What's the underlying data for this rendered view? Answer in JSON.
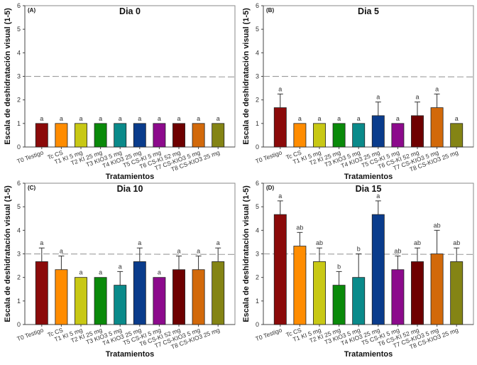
{
  "chart_data": [
    {
      "type": "bar",
      "panel": "(A)",
      "title": "Dia 0",
      "xlabel": "Tratamientos",
      "ylabel": "Escala de deshidratación visual (1-5)",
      "ylim": [
        0,
        6
      ],
      "yticks": [
        0,
        1,
        2,
        3,
        4,
        5,
        6
      ],
      "reference_line": 3,
      "categories": [
        "T0 Testigo",
        "Tc CS",
        "T1 KI 5 mg",
        "T2 KI 25 mg",
        "T3 KIO3 5 mg",
        "T4 KIO3 25 mg",
        "T5 CS-KI 5 mg",
        "T6 CS-KI 52 mg",
        "T7 CS-KIO3 5 mg",
        "T8 CS-KIO3 25 mg"
      ],
      "values": [
        1,
        1,
        1,
        1,
        1,
        1,
        1,
        1,
        1,
        1
      ],
      "errors": [
        0,
        0,
        0,
        0,
        0,
        0,
        0,
        0,
        0,
        0
      ],
      "significance": [
        "a",
        "a",
        "a",
        "a",
        "a",
        "a",
        "a",
        "a",
        "a",
        "a"
      ]
    },
    {
      "type": "bar",
      "panel": "(B)",
      "title": "Dia 5",
      "xlabel": "Tratamientos",
      "ylabel": "Escala de deshidratación visual (1-5)",
      "ylim": [
        0,
        6
      ],
      "yticks": [
        0,
        1,
        2,
        3,
        4,
        5,
        6
      ],
      "reference_line": 3,
      "categories": [
        "T0 Testigo",
        "Tc CS",
        "T1 KI 5 mg",
        "T2 KI 25 mg",
        "T3 KIO3 5 mg",
        "T4 KIO3 25 mg",
        "T5 CS-KI 5 mg",
        "T6 CS-KI 52 mg",
        "T7 CS-KIO3 5 mg",
        "T8 CS-KIO3 25 mg"
      ],
      "values": [
        1.67,
        1,
        1,
        1,
        1,
        1.33,
        1,
        1.33,
        1.67,
        1
      ],
      "errors": [
        0.58,
        0,
        0,
        0,
        0,
        0.58,
        0,
        0.58,
        0.58,
        0
      ],
      "significance": [
        "a",
        "a",
        "a",
        "a",
        "a",
        "a",
        "a",
        "a",
        "a",
        "a"
      ]
    },
    {
      "type": "bar",
      "panel": "(C)",
      "title": "Dia 10",
      "xlabel": "Tratamientos",
      "ylabel": "Escala de deshidratación visual (1-5)",
      "ylim": [
        0,
        6
      ],
      "yticks": [
        0,
        1,
        2,
        3,
        4,
        5,
        6
      ],
      "reference_line": 3,
      "categories": [
        "T0 Testigo",
        "Tc CS",
        "T1 KI 5 mg",
        "T2 KI 25 mg",
        "T3 KIO3 5 mg",
        "T4 KIO3 25 mg",
        "T5 CS-KI 5 mg",
        "T6 CS-KI 52 mg",
        "T7 CS-KIO3 5 mg",
        "T8 CS-KIO3 25 mg"
      ],
      "values": [
        2.67,
        2.33,
        2,
        2,
        1.67,
        2.67,
        2,
        2.33,
        2.33,
        2.67
      ],
      "errors": [
        0.58,
        0.58,
        0,
        0,
        0.58,
        0.58,
        0,
        0.58,
        0.58,
        0.58
      ],
      "significance": [
        "a",
        "a",
        "a",
        "a",
        "a",
        "a",
        "a",
        "a",
        "a",
        "a"
      ]
    },
    {
      "type": "bar",
      "panel": "(D)",
      "title": "Dia 15",
      "xlabel": "Tratamientos",
      "ylabel": "Escala de deshidratación visual (1-5)",
      "ylim": [
        0,
        6
      ],
      "yticks": [
        0,
        1,
        2,
        3,
        4,
        5,
        6
      ],
      "reference_line": 3,
      "categories": [
        "T0 Testigo",
        "Tc CS",
        "T1 KI 5 mg",
        "T2 KI 25 mg",
        "T3 KIO3 5 mg",
        "T4 KIO3 25 mg",
        "T5 CS-KI 5 mg",
        "T6 CS-KI 52 mg",
        "T7 CS-KIO3 5 mg",
        "T8 CS-KIO3 25 mg"
      ],
      "values": [
        4.67,
        3.33,
        2.67,
        1.67,
        2,
        4.67,
        2.33,
        2.67,
        3,
        2.67
      ],
      "errors": [
        0.58,
        0.58,
        0.58,
        0.58,
        1,
        0.58,
        0.58,
        0.58,
        1,
        0.58
      ],
      "significance": [
        "a",
        "ab",
        "ab",
        "b",
        "b",
        "a",
        "ab",
        "ab",
        "ab",
        "ab"
      ]
    }
  ],
  "bar_colors": [
    "#8b0a0a",
    "#ff8c00",
    "#c8c814",
    "#0a8a0a",
    "#0a8a8a",
    "#0a3c8c",
    "#8c0a8c",
    "#6e0000",
    "#d2690a",
    "#848414"
  ],
  "reference_line_color": "#9a9a9a"
}
